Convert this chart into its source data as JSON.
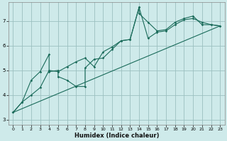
{
  "xlabel": "Humidex (Indice chaleur)",
  "background_color": "#ceeaea",
  "grid_color": "#9bbfbf",
  "line_color": "#1a6b5a",
  "xlim": [
    -0.5,
    23.5
  ],
  "ylim": [
    2.8,
    7.75
  ],
  "xticks": [
    0,
    1,
    2,
    3,
    4,
    5,
    6,
    7,
    8,
    9,
    10,
    11,
    12,
    13,
    14,
    15,
    16,
    17,
    18,
    19,
    20,
    21,
    22,
    23
  ],
  "yticks": [
    3,
    4,
    5,
    6,
    7
  ],
  "line1_x": [
    0,
    1,
    2,
    3,
    4,
    4,
    5,
    5,
    6,
    7,
    8,
    8,
    9,
    10,
    11,
    12,
    13,
    14,
    14,
    15,
    16,
    17,
    18,
    19,
    20,
    21,
    22,
    23
  ],
  "line1_y": [
    3.3,
    3.72,
    4.6,
    4.95,
    5.65,
    4.95,
    5.0,
    4.75,
    4.6,
    4.35,
    4.35,
    5.1,
    5.45,
    5.5,
    5.85,
    6.2,
    6.25,
    7.55,
    7.3,
    6.95,
    6.6,
    6.65,
    6.95,
    7.1,
    7.2,
    6.85,
    6.85,
    6.8
  ],
  "line2_x": [
    0,
    1,
    2,
    3,
    4,
    5,
    6,
    7,
    8,
    9,
    10,
    11,
    12,
    13,
    14,
    15,
    16,
    17,
    18,
    19,
    20,
    21,
    22,
    23
  ],
  "line2_y": [
    3.3,
    3.72,
    4.0,
    4.3,
    5.0,
    4.95,
    5.15,
    5.35,
    5.5,
    5.15,
    5.75,
    5.95,
    6.2,
    6.25,
    7.55,
    6.3,
    6.55,
    6.6,
    6.85,
    7.05,
    7.1,
    6.95,
    6.85,
    6.8
  ],
  "trend_x": [
    0,
    23
  ],
  "trend_y": [
    3.3,
    6.8
  ],
  "xlabel_fontsize": 6,
  "tick_fontsize": 4.5,
  "linewidth": 0.8,
  "markersize": 1.8
}
